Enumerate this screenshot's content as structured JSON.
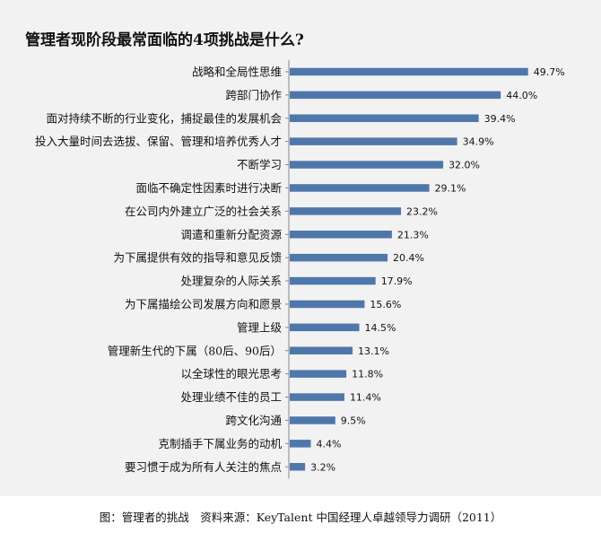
{
  "chart_data": {
    "type": "bar",
    "orientation": "horizontal",
    "title": "管理者现阶段最常面临的4项挑战是什么?",
    "bar_color": "#4f77aa",
    "background_color": "#f2f2f2",
    "xlim": [
      0,
      52
    ],
    "grid": false,
    "legend": "none",
    "categories": [
      "战略和全局性思维",
      "跨部门协作",
      "面对持续不断的行业变化，捕捉最佳的发展机会",
      "投入大量时间去选拔、保留、管理和培养优秀人才",
      "不断学习",
      "面临不确定性因素时进行决断",
      "在公司内外建立广泛的社会关系",
      "调遣和重新分配资源",
      "为下属提供有效的指导和意见反馈",
      "处理复杂的人际关系",
      "为下属描绘公司发展方向和愿景",
      "管理上级",
      "管理新生代的下属（80后、90后）",
      "以全球性的眼光思考",
      "处理业绩不佳的员工",
      "跨文化沟通",
      "克制插手下属业务的动机",
      "要习惯于成为所有人关注的焦点"
    ],
    "values": [
      49.7,
      44.0,
      39.4,
      34.9,
      32.0,
      29.1,
      23.2,
      21.3,
      20.4,
      17.9,
      15.6,
      14.5,
      13.1,
      11.8,
      11.4,
      9.5,
      4.4,
      3.2
    ],
    "value_labels": [
      "49.7%",
      "44.0%",
      "39.4%",
      "34.9%",
      "32.0%",
      "29.1%",
      "23.2%",
      "21.3%",
      "20.4%",
      "17.9%",
      "15.6%",
      "14.5%",
      "13.1%",
      "11.8%",
      "11.4%",
      "9.5%",
      "4.4%",
      "3.2%"
    ]
  },
  "caption": "图：管理者的挑战　资料来源：KeyTalent 中国经理人卓越领导力调研（2011）"
}
